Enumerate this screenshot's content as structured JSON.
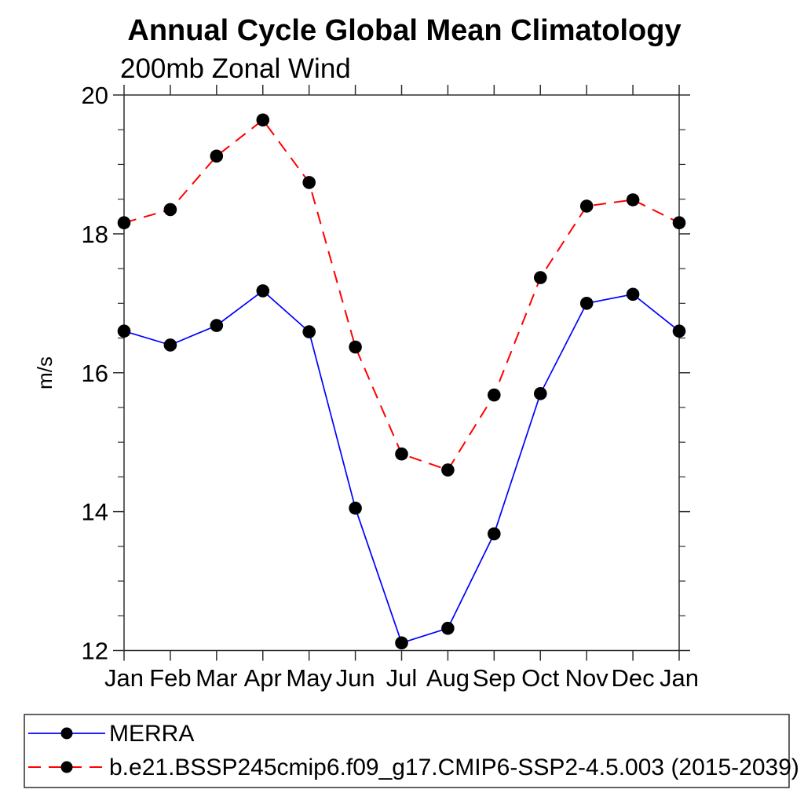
{
  "chart_data": {
    "type": "line",
    "title": "Annual Cycle Global Mean Climatology",
    "subtitle": "200mb Zonal Wind",
    "ylabel": "m/s",
    "xlabel": "",
    "categories": [
      "Jan",
      "Feb",
      "Mar",
      "Apr",
      "May",
      "Jun",
      "Jul",
      "Aug",
      "Sep",
      "Oct",
      "Nov",
      "Dec",
      "Jan"
    ],
    "ylim": [
      12,
      20
    ],
    "ytick_values": [
      12,
      14,
      16,
      18,
      20
    ],
    "ytick_labels": [
      "12",
      "14",
      "16",
      "18",
      "20"
    ],
    "yminor_step": 0.5,
    "grid": false,
    "legend_position": "bottom",
    "frame_color": "#2e2e2e",
    "marker_color": "#000000",
    "series": [
      {
        "name": "MERRA",
        "color": "#0000ff",
        "line_style": "solid",
        "marker": "circle",
        "values": [
          16.6,
          16.4,
          16.68,
          17.18,
          16.59,
          14.05,
          12.11,
          12.32,
          13.68,
          15.7,
          17.0,
          17.13,
          16.6
        ]
      },
      {
        "name": "b.e21.BSSP245cmip6.f09_g17.CMIP6-SSP2-4.5.003 (2015-2039)",
        "color": "#ff0000",
        "line_style": "dashed",
        "marker": "circle",
        "values": [
          18.16,
          18.35,
          19.12,
          19.64,
          18.74,
          16.37,
          14.83,
          14.6,
          15.68,
          17.37,
          18.4,
          18.49,
          18.16
        ]
      }
    ]
  }
}
